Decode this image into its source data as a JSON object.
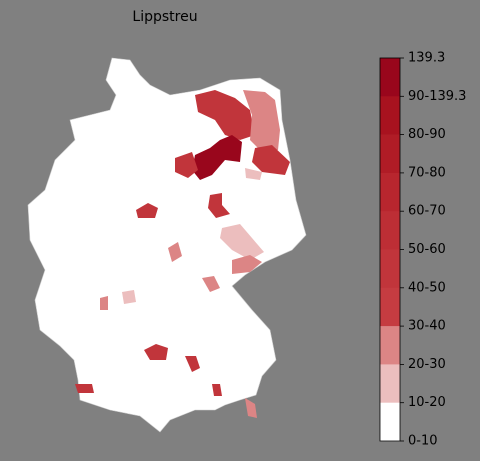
{
  "title": "Lippstreu",
  "legend": {
    "ticks": [
      "139.3",
      "90-139.3",
      "80-90",
      "70-80",
      "60-70",
      "50-60",
      "40-50",
      "30-40",
      "20-30",
      "10-20",
      "0-10"
    ],
    "colors": [
      "#99061c",
      "#a8121f",
      "#b01c26",
      "#b8262e",
      "#bd2e35",
      "#c1353b",
      "#c53c41",
      "#dc8585",
      "#ecbebe",
      "#ffffff"
    ]
  }
}
